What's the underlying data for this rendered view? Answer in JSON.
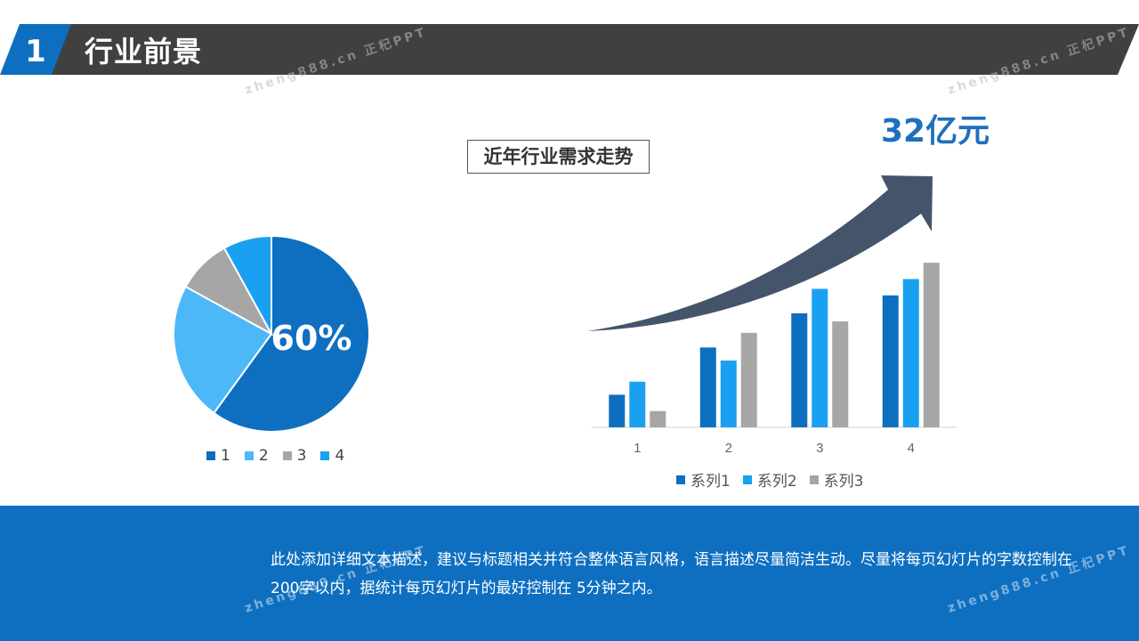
{
  "header": {
    "number": "1",
    "title": "行业前景",
    "colors": {
      "accent": "#0e6fc0",
      "bar": "#404040"
    }
  },
  "watermark": {
    "text": "zheng888.cn 正杞PPT"
  },
  "pie": {
    "center_label": "60%",
    "legend": [
      "1",
      "2",
      "3",
      "4"
    ]
  },
  "trend": {
    "title": "近年行业需求走势",
    "big_value": "32亿元",
    "arrow_color": "#44546a"
  },
  "description": "此处添加详细文本描述，建议与标题相关并符合整体语言风格，语言描述尽量简洁生动。尽量将每页幻灯片的字数控制在 200字以内，据统计每页幻灯片的最好控制在 5分钟之内。",
  "chart_data": [
    {
      "type": "pie",
      "categories": [
        "1",
        "2",
        "3",
        "4"
      ],
      "values": [
        60,
        23,
        9,
        8
      ],
      "colors": [
        "#0e6fc0",
        "#4db8f8",
        "#a6a6a6",
        "#1aa0f0"
      ]
    },
    {
      "type": "bar",
      "categories": [
        "1",
        "2",
        "3",
        "4"
      ],
      "series": [
        {
          "name": "系列1",
          "values": [
            2.0,
            4.9,
            7.0,
            8.1
          ],
          "color": "#0e6fc0"
        },
        {
          "name": "系列2",
          "values": [
            2.8,
            4.1,
            8.5,
            9.1
          ],
          "color": "#1aa0f0"
        },
        {
          "name": "系列3",
          "values": [
            1.0,
            5.8,
            6.5,
            10.1
          ],
          "color": "#a6a6a6"
        }
      ],
      "ylim": [
        0,
        10.6
      ],
      "grid": false,
      "legend": "bottom"
    }
  ]
}
